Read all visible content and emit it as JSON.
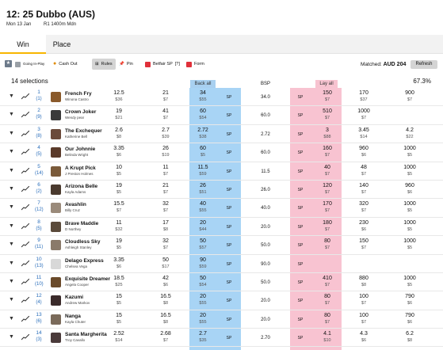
{
  "header": {
    "title": "12: 25 Dubbo (AUS)",
    "date": "Mon 13 Jan",
    "race": "R1 1400m Mdn"
  },
  "tabs": [
    {
      "label": "Win"
    },
    {
      "label": "Place"
    }
  ],
  "toolbar": {
    "going_in_play": "Going In-Play",
    "cash_out": "Cash Out",
    "rules": "Rules",
    "pin": "Pin",
    "betfair_sp": "Betfair SP",
    "sp_help": "[?]",
    "form": "Form",
    "matched_label": "Matched:",
    "matched_value": "AUD 204",
    "refresh": "Refresh"
  },
  "market": {
    "selections": "14 selections",
    "percentage": "67.3%",
    "back_all": "Back all",
    "bsp": "BSP",
    "lay_all": "Lay all"
  },
  "colors": {
    "back": "#a8d4f5",
    "lay": "#f8c3d1",
    "accent": "#f7b500"
  },
  "runners": [
    {
      "num": "1",
      "draw": "(1)",
      "name": "French Fry",
      "jockey": "Winona Castro",
      "silk": "#8a5a2b",
      "b3": [
        "12.5",
        "$36"
      ],
      "b2": [
        "21",
        "$7"
      ],
      "b1": [
        "34",
        "$55"
      ],
      "sp": "SP",
      "bsp": "34.0",
      "lsp": "SP",
      "l1": [
        "150",
        "$7"
      ],
      "l2": [
        "170",
        "$37"
      ],
      "l3": [
        "900",
        "$7"
      ]
    },
    {
      "num": "2",
      "draw": "(9)",
      "name": "Crown Joker",
      "jockey": "Wendy pear",
      "silk": "#3a3a3a",
      "b3": [
        "19",
        "$21"
      ],
      "b2": [
        "41",
        "$7"
      ],
      "b1": [
        "60",
        "$54"
      ],
      "sp": "SP",
      "bsp": "60.0",
      "lsp": "SP",
      "l1": [
        "510",
        "$7"
      ],
      "l2": [
        "1000",
        "$7"
      ],
      "l3": [
        "",
        ""
      ]
    },
    {
      "num": "3",
      "draw": "(8)",
      "name": "The Exchequer",
      "jockey": "Katherine Bell",
      "silk": "#6b4a3a",
      "b3": [
        "2.6",
        "$8"
      ],
      "b2": [
        "2.7",
        "$39"
      ],
      "b1": [
        "2.72",
        "$38"
      ],
      "sp": "SP",
      "bsp": "2.72",
      "lsp": "SP",
      "l1": [
        "3",
        "$88"
      ],
      "l2": [
        "3.45",
        "$14"
      ],
      "l3": [
        "4.2",
        "$22"
      ]
    },
    {
      "num": "4",
      "draw": "(5)",
      "name": "Our Johnnie",
      "jockey": "Belinda Wright",
      "silk": "#5a3a2a",
      "b3": [
        "3.35",
        "$6"
      ],
      "b2": [
        "26",
        "$19"
      ],
      "b1": [
        "60",
        "$5"
      ],
      "sp": "SP",
      "bsp": "60.0",
      "lsp": "SP",
      "l1": [
        "160",
        "$7"
      ],
      "l2": [
        "960",
        "$6"
      ],
      "l3": [
        "1000",
        "$5"
      ]
    },
    {
      "num": "5",
      "draw": "(14)",
      "name": "A Krupt Pick",
      "jockey": "J Preston Holmes",
      "silk": "#7a5a3a",
      "b3": [
        "10",
        "$5"
      ],
      "b2": [
        "11",
        "$7"
      ],
      "b1": [
        "11.5",
        "$59"
      ],
      "sp": "SP",
      "bsp": "11.5",
      "lsp": "SP",
      "l1": [
        "40",
        "$7"
      ],
      "l2": [
        "48",
        "$7"
      ],
      "l3": [
        "1000",
        "$5"
      ]
    },
    {
      "num": "6",
      "draw": "(2)",
      "name": "Arizona Belle",
      "jockey": "Kayla Adams",
      "silk": "#4a3a2e",
      "b3": [
        "19",
        "$5"
      ],
      "b2": [
        "21",
        "$7"
      ],
      "b1": [
        "26",
        "$51"
      ],
      "sp": "SP",
      "bsp": "26.0",
      "lsp": "SP",
      "l1": [
        "120",
        "$7"
      ],
      "l2": [
        "140",
        "$7"
      ],
      "l3": [
        "960",
        "$6"
      ]
    },
    {
      "num": "7",
      "draw": "(12)",
      "name": "Avashlin",
      "jockey": "Billy Cruz",
      "silk": "#9a8a7a",
      "b3": [
        "15.5",
        "$7"
      ],
      "b2": [
        "32",
        "$7"
      ],
      "b1": [
        "40",
        "$55"
      ],
      "sp": "SP",
      "bsp": "40.0",
      "lsp": "SP",
      "l1": [
        "170",
        "$7"
      ],
      "l2": [
        "320",
        "$7"
      ],
      "l3": [
        "1000",
        "$5"
      ]
    },
    {
      "num": "8",
      "draw": "(5)",
      "name": "Brave Maddie",
      "jockey": "D Northey",
      "silk": "#5a4a3a",
      "b3": [
        "11",
        "$32"
      ],
      "b2": [
        "17",
        "$8"
      ],
      "b1": [
        "20",
        "$44"
      ],
      "sp": "SP",
      "bsp": "20.0",
      "lsp": "SP",
      "l1": [
        "180",
        "$7"
      ],
      "l2": [
        "230",
        "$6"
      ],
      "l3": [
        "1000",
        "$5"
      ]
    },
    {
      "num": "9",
      "draw": "(11)",
      "name": "Cloudless Sky",
      "jockey": "Ashleigh Stanley",
      "silk": "#8a7a6a",
      "b3": [
        "19",
        "$5"
      ],
      "b2": [
        "32",
        "$7"
      ],
      "b1": [
        "50",
        "$57"
      ],
      "sp": "SP",
      "bsp": "50.0",
      "lsp": "SP",
      "l1": [
        "80",
        "$7"
      ],
      "l2": [
        "150",
        "$7"
      ],
      "l3": [
        "1000",
        "$5"
      ]
    },
    {
      "num": "10",
      "draw": "(13)",
      "name": "Delago Express",
      "jockey": "Chelsea Vega",
      "silk": "#d8d8d8",
      "b3": [
        "3.35",
        "$6"
      ],
      "b2": [
        "50",
        "$17"
      ],
      "b1": [
        "90",
        "$59"
      ],
      "sp": "SP",
      "bsp": "90.0",
      "lsp": "SP",
      "l1": [
        "",
        ""
      ],
      "l2": [
        "",
        ""
      ],
      "l3": [
        "",
        ""
      ]
    },
    {
      "num": "11",
      "draw": "(10)",
      "name": "Exquisite Dreamer",
      "jockey": "Angela Cooper",
      "silk": "#6a4a2a",
      "b3": [
        "18.5",
        "$25"
      ],
      "b2": [
        "42",
        "$6"
      ],
      "b1": [
        "50",
        "$54"
      ],
      "sp": "SP",
      "bsp": "50.0",
      "lsp": "SP",
      "l1": [
        "410",
        "$7"
      ],
      "l2": [
        "880",
        "$8"
      ],
      "l3": [
        "1000",
        "$5"
      ]
    },
    {
      "num": "12",
      "draw": "(4)",
      "name": "Kazumi",
      "jockey": "Andrew Markov",
      "silk": "#3a2a2a",
      "b3": [
        "15",
        "$5"
      ],
      "b2": [
        "16.5",
        "$8"
      ],
      "b1": [
        "20",
        "$55"
      ],
      "sp": "SP",
      "bsp": "20.0",
      "lsp": "SP",
      "l1": [
        "80",
        "$7"
      ],
      "l2": [
        "100",
        "$7"
      ],
      "l3": [
        "790",
        "$6"
      ]
    },
    {
      "num": "13",
      "draw": "(6)",
      "name": "Nanga",
      "jockey": "Kayla Chuter",
      "silk": "#7a6a5a",
      "b3": [
        "15",
        "$5"
      ],
      "b2": [
        "16.5",
        "$8"
      ],
      "b1": [
        "20",
        "$55"
      ],
      "sp": "SP",
      "bsp": "20.0",
      "lsp": "SP",
      "l1": [
        "80",
        "$7"
      ],
      "l2": [
        "100",
        "$7"
      ],
      "l3": [
        "790",
        "$6"
      ]
    },
    {
      "num": "14",
      "draw": "(3)",
      "name": "Santa Margherita",
      "jockey": "Troy Cavallo",
      "silk": "#4a3a3a",
      "b3": [
        "2.52",
        "$14"
      ],
      "b2": [
        "2.68",
        "$7"
      ],
      "b1": [
        "2.7",
        "$35"
      ],
      "sp": "SP",
      "bsp": "2.70",
      "lsp": "SP",
      "l1": [
        "4.1",
        "$10"
      ],
      "l2": [
        "4.3",
        "$6"
      ],
      "l3": [
        "6.2",
        "$8"
      ]
    }
  ]
}
